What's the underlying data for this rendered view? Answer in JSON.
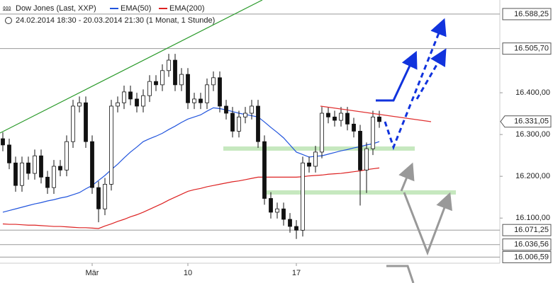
{
  "chart_data": {
    "type": "candlestick",
    "title": "Dow Jones (Last, XXP)",
    "subtitle": "24.02.2014 18:30 - 20.03.2014 21:30 (1 Monat, 1 Stunde)",
    "categories": [
      null,
      null,
      null,
      null,
      null,
      null,
      null,
      null,
      null,
      null,
      null,
      null,
      null,
      null,
      "Mär",
      null,
      null,
      null,
      null,
      null,
      null,
      null,
      null,
      null,
      null,
      null,
      null,
      null,
      null,
      "10",
      null,
      null,
      null,
      null,
      null,
      null,
      null,
      null,
      null,
      null,
      null,
      null,
      null,
      null,
      null,
      null,
      "17",
      null,
      null,
      null,
      null,
      null,
      null,
      null,
      null,
      null,
      null,
      null,
      null,
      null
    ],
    "open": [
      16290,
      16275,
      16232,
      16178,
      16232,
      16207,
      16249,
      16198,
      16173,
      16224,
      16215,
      16283,
      16368,
      16376,
      16283,
      16173,
      16122,
      16181,
      16368,
      16376,
      16402,
      16385,
      16368,
      16393,
      16427,
      16419,
      16453,
      16478,
      16419,
      16444,
      16376,
      16385,
      16376,
      16419,
      16436,
      16368,
      16351,
      16308,
      16342,
      16351,
      16368,
      16283,
      16147,
      16114,
      16122,
      16097,
      16080,
      16071,
      16232,
      16224,
      16258,
      16351,
      16342,
      16334,
      16351,
      16325,
      16308,
      16215,
      16266,
      16342
    ],
    "high": [
      16305,
      16290,
      16247,
      16247,
      16247,
      16264,
      16264,
      16213,
      16239,
      16239,
      16298,
      16383,
      16391,
      16391,
      16298,
      16188,
      16196,
      16383,
      16391,
      16417,
      16417,
      16400,
      16408,
      16442,
      16442,
      16468,
      16493,
      16493,
      16459,
      16459,
      16400,
      16400,
      16434,
      16451,
      16451,
      16383,
      16366,
      16357,
      16366,
      16383,
      16383,
      16298,
      16162,
      16137,
      16137,
      16112,
      16095,
      16247,
      16247,
      16273,
      16366,
      16366,
      16357,
      16366,
      16366,
      16340,
      16323,
      16281,
      16357,
      16357
    ],
    "low": [
      16260,
      16217,
      16163,
      16163,
      16192,
      16192,
      16183,
      16158,
      16158,
      16200,
      16200,
      16268,
      16353,
      16268,
      16158,
      16090,
      16107,
      16166,
      16353,
      16361,
      16370,
      16353,
      16353,
      16378,
      16404,
      16404,
      16438,
      16404,
      16404,
      16361,
      16361,
      16361,
      16361,
      16404,
      16353,
      16336,
      16293,
      16293,
      16327,
      16336,
      16268,
      16132,
      16099,
      16099,
      16082,
      16065,
      16050,
      16056,
      16209,
      16209,
      16243,
      16327,
      16319,
      16319,
      16310,
      16293,
      16130,
      16160,
      16251,
      16316
    ],
    "close": [
      16275,
      16232,
      16178,
      16232,
      16207,
      16249,
      16198,
      16173,
      16224,
      16215,
      16283,
      16368,
      16376,
      16283,
      16173,
      16122,
      16181,
      16368,
      16376,
      16402,
      16385,
      16368,
      16393,
      16427,
      16419,
      16453,
      16478,
      16419,
      16444,
      16376,
      16385,
      16376,
      16419,
      16436,
      16368,
      16351,
      16308,
      16342,
      16351,
      16368,
      16283,
      16147,
      16114,
      16122,
      16097,
      16080,
      16071,
      16232,
      16224,
      16258,
      16351,
      16342,
      16334,
      16351,
      16325,
      16308,
      16215,
      16266,
      16342,
      16331
    ],
    "series": [
      {
        "name": "EMA(50)",
        "color": "#2255dd",
        "values": [
          16114,
          16118,
          16122,
          16126,
          16130,
          16134,
          16137,
          16141,
          16144,
          16148,
          16151,
          16156,
          16161,
          16170,
          16178,
          16190,
          16202,
          16216,
          16229,
          16244,
          16258,
          16270,
          16283,
          16290,
          16296,
          16303,
          16312,
          16320,
          16329,
          16337,
          16342,
          16347,
          16356,
          16364,
          16362,
          16359,
          16355,
          16351,
          16348,
          16345,
          16342,
          16330,
          16317,
          16305,
          16292,
          16275,
          16258,
          16252,
          16246,
          16248,
          16249,
          16253,
          16257,
          16261,
          16264,
          16268,
          16271,
          16275,
          16278,
          16283
        ]
      },
      {
        "name": "EMA(200)",
        "color": "#dd2222",
        "values": [
          16086,
          16085,
          16085,
          16084,
          16083,
          16083,
          16082,
          16081,
          16080,
          16080,
          16079,
          16078,
          16077,
          16077,
          16076,
          16075,
          16081,
          16086,
          16092,
          16097,
          16103,
          16108,
          16114,
          16121,
          16128,
          16135,
          16143,
          16150,
          16157,
          16164,
          16168,
          16171,
          16175,
          16178,
          16181,
          16184,
          16187,
          16189,
          16192,
          16195,
          16198,
          16198,
          16198,
          16198,
          16198,
          16198,
          16198,
          16199,
          16201,
          16202,
          16203,
          16205,
          16206,
          16207,
          16209,
          16211,
          16213,
          16216,
          16218,
          16220
        ]
      }
    ],
    "ylim": [
      15992,
      16622
    ],
    "yticks": [
      {
        "value": 16100,
        "label": "16.100,00"
      },
      {
        "value": 16200,
        "label": "16.200,00"
      },
      {
        "value": 16300,
        "label": "16.300,00"
      },
      {
        "value": 16400,
        "label": "16.400,00"
      }
    ],
    "levels": [
      {
        "value": 16588.25,
        "label": "16.588,25"
      },
      {
        "value": 16505.7,
        "label": "16.505,70"
      },
      {
        "value": 16071.25,
        "label": "16.071,25"
      },
      {
        "value": 16036.56,
        "label": "16.036,56"
      },
      {
        "value": 16006.59,
        "label": "16.006,59"
      }
    ],
    "last": {
      "value": 16331.05,
      "label": "16.331,05"
    }
  }
}
